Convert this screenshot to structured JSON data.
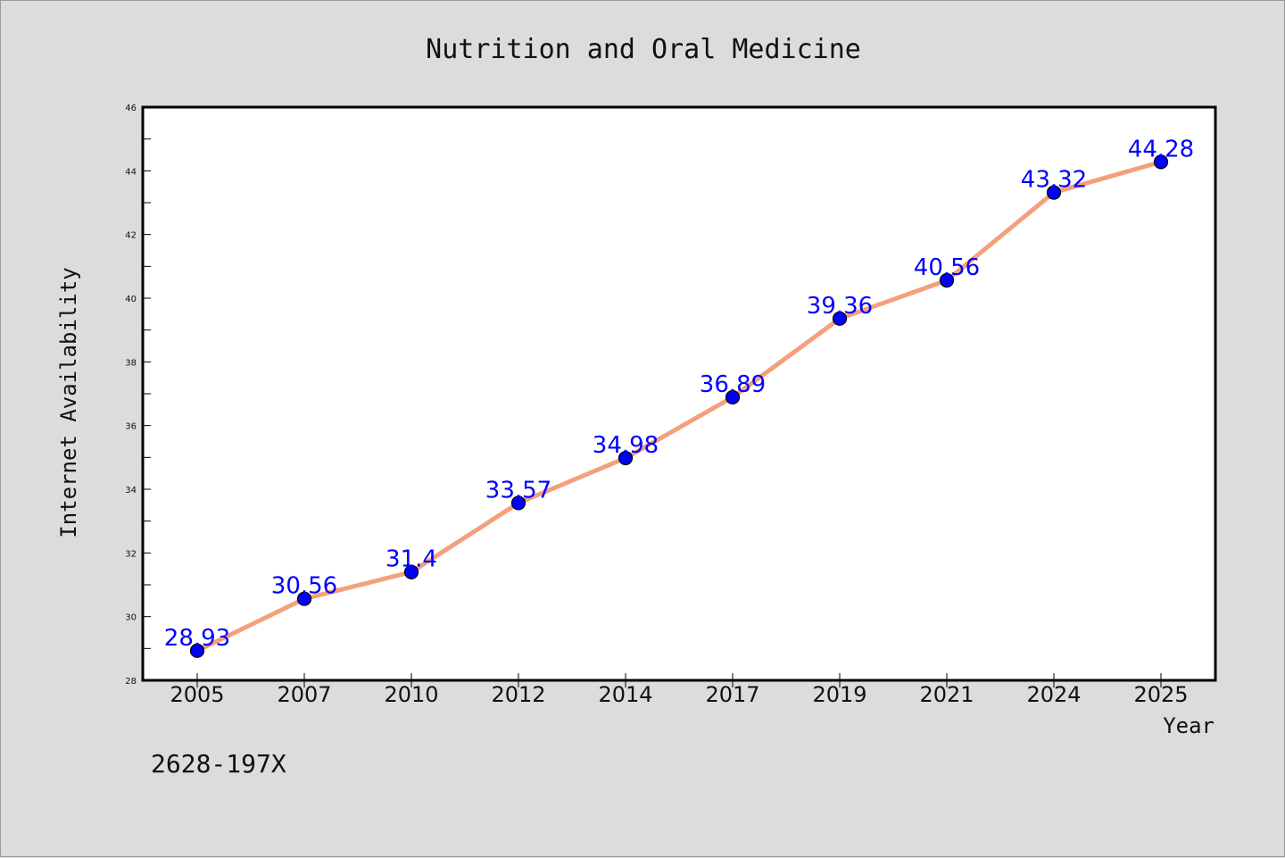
{
  "chart_data": {
    "type": "line",
    "title": "Nutrition and Oral Medicine",
    "xlabel": "Year",
    "ylabel": "Internet Availability",
    "categories": [
      "2005",
      "2007",
      "2010",
      "2012",
      "2014",
      "2017",
      "2019",
      "2021",
      "2024",
      "2025"
    ],
    "series": [
      {
        "values": [
          28.93,
          30.56,
          31.4,
          33.57,
          34.98,
          36.89,
          39.36,
          40.56,
          43.32,
          44.28
        ]
      }
    ],
    "data_labels": [
      "28.93",
      "30.56",
      "31.4",
      "33.57",
      "34.98",
      "36.89",
      "39.36",
      "40.56",
      "43.32",
      "44.28"
    ],
    "ylim": [
      28,
      46
    ],
    "yticks": [
      28,
      30,
      32,
      34,
      36,
      38,
      40,
      42,
      44,
      46
    ],
    "grid": false,
    "legend": "none",
    "colors": {
      "line": "#f4a07c",
      "marker": "#0000ff",
      "label": "#0000ff",
      "background": "#dcdcdc",
      "plot_background": "#ffffff"
    }
  },
  "footnote": "2628-197X"
}
